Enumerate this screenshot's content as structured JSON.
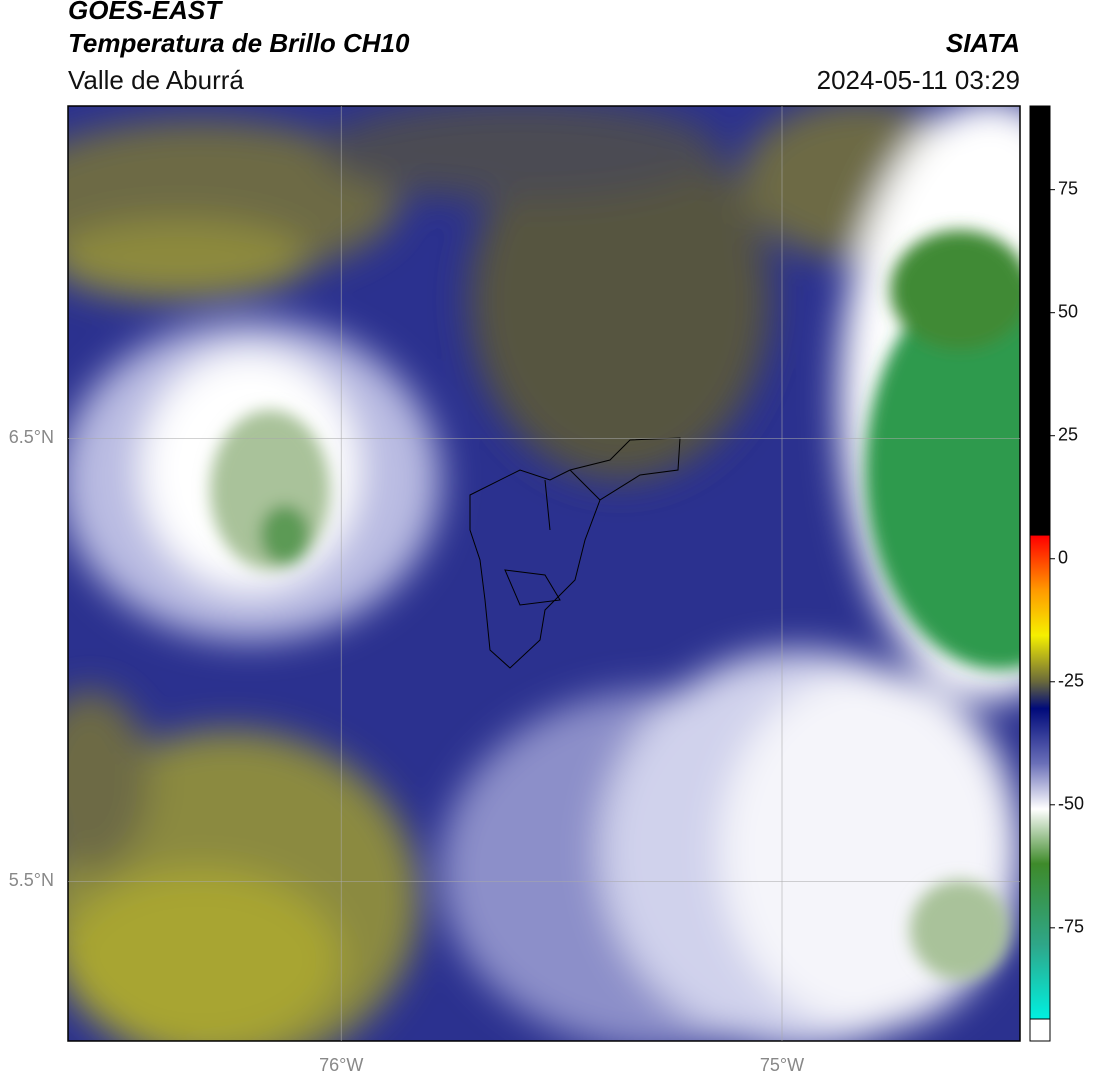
{
  "header": {
    "title": "GOES-EAST",
    "subtitle": "Temperatura de Brillo CH10",
    "region": "Valle de Aburrá",
    "source": "SIATA",
    "timestamp": "2024-05-11 03:29"
  },
  "map": {
    "xlim": [
      -76.62,
      -74.46
    ],
    "ylim": [
      5.14,
      7.25
    ],
    "xticks": [
      {
        "value": -76,
        "label": "76°W"
      },
      {
        "value": -75,
        "label": "75°W"
      }
    ],
    "yticks": [
      {
        "value": 6.5,
        "label": "6.5°N"
      },
      {
        "value": 5.5,
        "label": "5.5°N"
      }
    ],
    "grid": true
  },
  "colorbar": {
    "range": [
      -98,
      92
    ],
    "ticks": [
      75,
      50,
      25,
      0,
      -25,
      -50,
      -75
    ]
  }
}
